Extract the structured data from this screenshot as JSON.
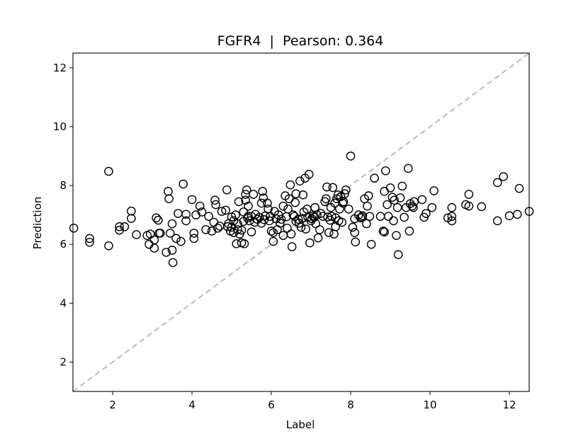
{
  "chart_data": {
    "type": "scatter",
    "title": "FGFR4  |  Pearson: 0.364",
    "xlabel": "Label",
    "ylabel": "Prediction",
    "xlim": [
      1.0,
      12.5
    ],
    "ylim": [
      1.0,
      12.5
    ],
    "xticks": [
      2,
      4,
      6,
      8,
      10,
      12
    ],
    "yticks": [
      2,
      4,
      6,
      8,
      10,
      12
    ],
    "grid": false,
    "identity_line": {
      "style": "dashed",
      "color": "#c0c0c0"
    },
    "marker": {
      "shape": "circle",
      "fill": "none",
      "edge": "#000000"
    },
    "points": [
      [
        1.02,
        6.55
      ],
      [
        1.42,
        6.2
      ],
      [
        1.42,
        6.07
      ],
      [
        1.9,
        8.48
      ],
      [
        1.9,
        5.95
      ],
      [
        2.17,
        6.6
      ],
      [
        2.17,
        6.48
      ],
      [
        2.3,
        6.6
      ],
      [
        2.47,
        7.13
      ],
      [
        2.47,
        6.88
      ],
      [
        2.6,
        6.33
      ],
      [
        2.87,
        6.3
      ],
      [
        2.92,
        6.0
      ],
      [
        2.95,
        6.35
      ],
      [
        3.05,
        6.15
      ],
      [
        3.05,
        5.87
      ],
      [
        3.1,
        6.9
      ],
      [
        3.15,
        6.82
      ],
      [
        3.17,
        6.38
      ],
      [
        3.2,
        6.38
      ],
      [
        3.35,
        5.73
      ],
      [
        3.4,
        7.8
      ],
      [
        3.42,
        7.55
      ],
      [
        3.45,
        6.38
      ],
      [
        3.5,
        6.7
      ],
      [
        3.5,
        5.8
      ],
      [
        3.52,
        5.38
      ],
      [
        3.6,
        6.2
      ],
      [
        3.65,
        7.05
      ],
      [
        3.72,
        6.1
      ],
      [
        3.78,
        8.05
      ],
      [
        3.85,
        7.02
      ],
      [
        3.85,
        6.8
      ],
      [
        4.0,
        7.52
      ],
      [
        4.05,
        6.38
      ],
      [
        4.05,
        6.2
      ],
      [
        4.1,
        7.0
      ],
      [
        4.2,
        7.3
      ],
      [
        4.25,
        7.1
      ],
      [
        4.35,
        6.5
      ],
      [
        4.42,
        6.95
      ],
      [
        4.5,
        6.45
      ],
      [
        4.55,
        6.75
      ],
      [
        4.58,
        7.5
      ],
      [
        4.6,
        7.35
      ],
      [
        4.65,
        6.55
      ],
      [
        4.7,
        6.62
      ],
      [
        4.75,
        7.12
      ],
      [
        4.85,
        7.16
      ],
      [
        4.88,
        7.85
      ],
      [
        4.9,
        6.6
      ],
      [
        4.92,
        6.7
      ],
      [
        4.97,
        6.45
      ],
      [
        5.0,
        6.93
      ],
      [
        5.0,
        6.58
      ],
      [
        5.05,
        6.8
      ],
      [
        5.05,
        6.4
      ],
      [
        5.1,
        7.0
      ],
      [
        5.12,
        6.02
      ],
      [
        5.15,
        6.7
      ],
      [
        5.15,
        6.5
      ],
      [
        5.18,
        7.45
      ],
      [
        5.2,
        6.35
      ],
      [
        5.25,
        6.48
      ],
      [
        5.25,
        6.05
      ],
      [
        5.3,
        6.78
      ],
      [
        5.3,
        7.1
      ],
      [
        5.32,
        6.02
      ],
      [
        5.35,
        7.7
      ],
      [
        5.35,
        7.5
      ],
      [
        5.38,
        7.85
      ],
      [
        5.4,
        6.9
      ],
      [
        5.42,
        7.3
      ],
      [
        5.42,
        6.96
      ],
      [
        5.45,
        6.8
      ],
      [
        5.5,
        6.42
      ],
      [
        5.5,
        6.95
      ],
      [
        5.55,
        7.7
      ],
      [
        5.58,
        6.75
      ],
      [
        5.6,
        7.02
      ],
      [
        5.65,
        6.85
      ],
      [
        5.7,
        6.92
      ],
      [
        5.75,
        7.4
      ],
      [
        5.75,
        6.72
      ],
      [
        5.78,
        7.8
      ],
      [
        5.8,
        7.58
      ],
      [
        5.82,
        6.84
      ],
      [
        5.85,
        6.97
      ],
      [
        5.9,
        7.4
      ],
      [
        5.92,
        7.2
      ],
      [
        5.95,
        6.8
      ],
      [
        5.97,
        6.95
      ],
      [
        6.0,
        6.45
      ],
      [
        6.05,
        6.1
      ],
      [
        6.05,
        6.4
      ],
      [
        6.08,
        7.12
      ],
      [
        6.12,
        6.87
      ],
      [
        6.15,
        6.5
      ],
      [
        6.18,
        7.0
      ],
      [
        6.22,
        6.72
      ],
      [
        6.25,
        6.85
      ],
      [
        6.3,
        7.3
      ],
      [
        6.3,
        6.3
      ],
      [
        6.35,
        7.65
      ],
      [
        6.38,
        6.94
      ],
      [
        6.4,
        6.55
      ],
      [
        6.42,
        7.2
      ],
      [
        6.45,
        7.55
      ],
      [
        6.48,
        8.02
      ],
      [
        6.5,
        6.35
      ],
      [
        6.52,
        5.92
      ],
      [
        6.55,
        7.0
      ],
      [
        6.58,
        6.95
      ],
      [
        6.6,
        7.42
      ],
      [
        6.62,
        6.78
      ],
      [
        6.62,
        7.72
      ],
      [
        6.68,
        6.85
      ],
      [
        6.7,
        6.72
      ],
      [
        6.72,
        8.15
      ],
      [
        6.75,
        6.58
      ],
      [
        6.78,
        6.88
      ],
      [
        6.8,
        7.68
      ],
      [
        6.82,
        7.1
      ],
      [
        6.85,
        8.25
      ],
      [
        6.87,
        6.52
      ],
      [
        6.9,
        7.2
      ],
      [
        6.92,
        6.92
      ],
      [
        6.95,
        8.38
      ],
      [
        6.97,
        6.05
      ],
      [
        7.0,
        6.8
      ],
      [
        7.02,
        6.87
      ],
      [
        7.05,
        6.97
      ],
      [
        7.08,
        6.92
      ],
      [
        7.1,
        7.25
      ],
      [
        7.12,
        6.7
      ],
      [
        7.15,
        7.0
      ],
      [
        7.18,
        6.22
      ],
      [
        7.22,
        6.5
      ],
      [
        7.25,
        7.05
      ],
      [
        7.3,
        6.95
      ],
      [
        7.35,
        7.45
      ],
      [
        7.38,
        7.55
      ],
      [
        7.4,
        7.95
      ],
      [
        7.42,
        6.93
      ],
      [
        7.45,
        6.4
      ],
      [
        7.48,
        6.82
      ],
      [
        7.5,
        7.25
      ],
      [
        7.52,
        6.95
      ],
      [
        7.55,
        7.93
      ],
      [
        7.58,
        6.35
      ],
      [
        7.6,
        7.4
      ],
      [
        7.62,
        6.9
      ],
      [
        7.62,
        6.6
      ],
      [
        7.65,
        7.55
      ],
      [
        7.68,
        7.68
      ],
      [
        7.7,
        6.8
      ],
      [
        7.72,
        7.2
      ],
      [
        7.75,
        7.62
      ],
      [
        7.78,
        6.75
      ],
      [
        7.8,
        7.4
      ],
      [
        7.82,
        7.45
      ],
      [
        7.85,
        7.72
      ],
      [
        7.88,
        7.85
      ],
      [
        7.95,
        7.2
      ],
      [
        8.0,
        9.0
      ],
      [
        8.05,
        6.58
      ],
      [
        8.1,
        6.87
      ],
      [
        8.1,
        6.4
      ],
      [
        8.12,
        6.08
      ],
      [
        8.2,
        7.0
      ],
      [
        8.25,
        6.9
      ],
      [
        8.28,
        6.93
      ],
      [
        8.3,
        6.97
      ],
      [
        8.35,
        7.55
      ],
      [
        8.4,
        6.7
      ],
      [
        8.42,
        7.3
      ],
      [
        8.45,
        7.65
      ],
      [
        8.48,
        6.95
      ],
      [
        8.52,
        6.0
      ],
      [
        8.6,
        8.25
      ],
      [
        8.75,
        6.95
      ],
      [
        8.82,
        6.45
      ],
      [
        8.85,
        6.42
      ],
      [
        8.85,
        7.8
      ],
      [
        8.88,
        8.5
      ],
      [
        8.92,
        7.35
      ],
      [
        8.95,
        6.95
      ],
      [
        9.0,
        7.92
      ],
      [
        9.05,
        7.6
      ],
      [
        9.08,
        6.8
      ],
      [
        9.1,
        7.5
      ],
      [
        9.15,
        6.3
      ],
      [
        9.18,
        7.25
      ],
      [
        9.2,
        5.65
      ],
      [
        9.25,
        7.58
      ],
      [
        9.3,
        7.98
      ],
      [
        9.35,
        6.92
      ],
      [
        9.4,
        7.25
      ],
      [
        9.45,
        8.58
      ],
      [
        9.48,
        6.45
      ],
      [
        9.5,
        7.38
      ],
      [
        9.55,
        7.3
      ],
      [
        9.58,
        7.25
      ],
      [
        9.6,
        7.45
      ],
      [
        9.8,
        7.52
      ],
      [
        9.85,
        6.92
      ],
      [
        9.9,
        7.05
      ],
      [
        10.05,
        7.25
      ],
      [
        10.1,
        7.82
      ],
      [
        10.45,
        6.9
      ],
      [
        10.55,
        7.25
      ],
      [
        10.55,
        6.95
      ],
      [
        10.55,
        6.8
      ],
      [
        10.9,
        7.35
      ],
      [
        10.98,
        7.3
      ],
      [
        10.98,
        7.7
      ],
      [
        11.3,
        7.28
      ],
      [
        11.7,
        6.8
      ],
      [
        11.7,
        8.1
      ],
      [
        11.85,
        8.3
      ],
      [
        12.0,
        6.97
      ],
      [
        12.2,
        7.02
      ],
      [
        12.25,
        7.9
      ],
      [
        12.5,
        7.12
      ]
    ]
  }
}
